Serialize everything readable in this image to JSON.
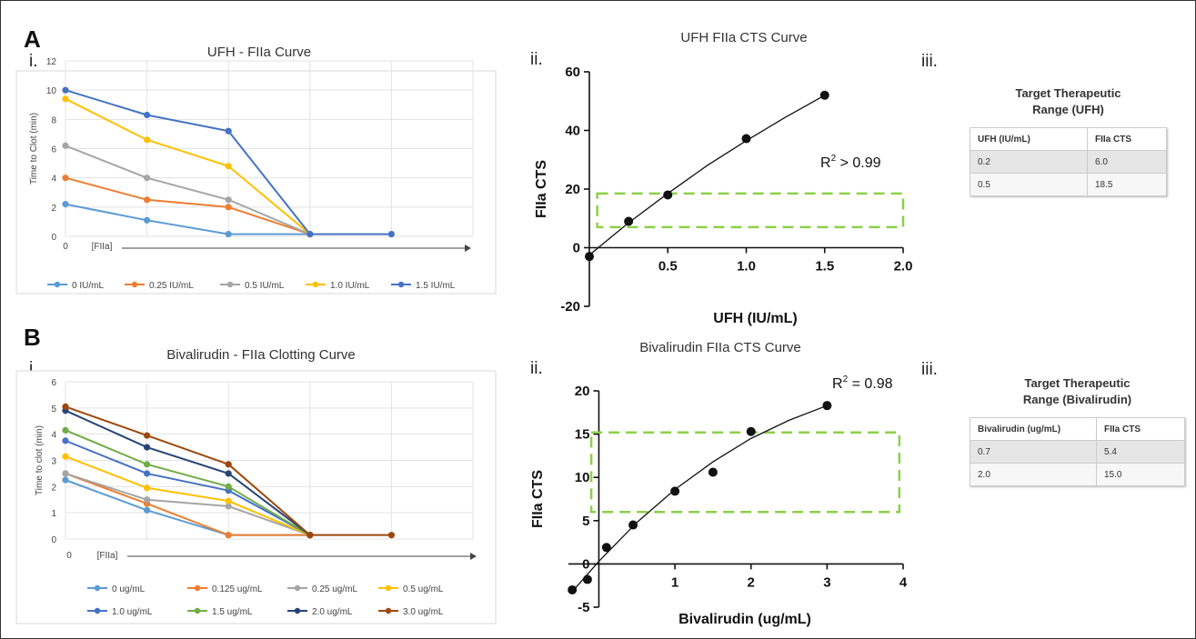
{
  "panels": {
    "A": {
      "letter": "A",
      "i": "i.",
      "ii": "ii.",
      "iii": "iii."
    },
    "B": {
      "letter": "B",
      "i": "i.",
      "ii": "ii.",
      "iii": "iii."
    }
  },
  "tables": {
    "ufh": {
      "title_line1": "Target Therapeutic",
      "title_line2": "Range (UFH)",
      "headers": [
        "UFH (IU/mL)",
        "FIIa CTS"
      ],
      "rows": [
        [
          "0.2",
          "6.0"
        ],
        [
          "0.5",
          "18.5"
        ]
      ]
    },
    "biv": {
      "title_line1": "Target Therapeutic",
      "title_line2": "Range (Bivalirudin)",
      "headers": [
        "Bivalirudin (ug/mL)",
        "FIIa CTS"
      ],
      "rows": [
        [
          "0.7",
          "5.4"
        ],
        [
          "2.0",
          "15.0"
        ]
      ]
    }
  },
  "chart_data": [
    {
      "id": "ufh_clot",
      "type": "line",
      "title": "UFH - FIIa Curve",
      "ylabel": "Time to Clot (min)",
      "xlabel": "[FIIa]",
      "x_origin_label": "0",
      "ylim": [
        0,
        12
      ],
      "yticks": [
        0,
        2,
        4,
        6,
        8,
        10,
        12
      ],
      "n_points": 5,
      "grid": true,
      "legend": "bottom",
      "series": [
        {
          "name": "0 IU/mL",
          "color": "#5b9bd5",
          "values": [
            2.2,
            1.1,
            0.15,
            0.15,
            null
          ]
        },
        {
          "name": "0.25 IU/mL",
          "color": "#ed7d31",
          "values": [
            4.0,
            2.5,
            2.0,
            0.15,
            null
          ]
        },
        {
          "name": "0.5 IU/mL",
          "color": "#a5a5a5",
          "values": [
            6.2,
            4.0,
            2.5,
            0.15,
            null
          ]
        },
        {
          "name": "1.0 IU/mL",
          "color": "#ffc000",
          "values": [
            9.4,
            6.6,
            4.8,
            0.15,
            null
          ]
        },
        {
          "name": "1.5 IU/mL",
          "color": "#4472c4",
          "values": [
            10.0,
            8.3,
            7.2,
            0.15,
            0.15
          ]
        }
      ]
    },
    {
      "id": "ufh_cts",
      "type": "scatter",
      "title": "UFH FIIa CTS Curve",
      "xlabel": "UFH (IU/mL)",
      "ylabel": "FIIa CTS",
      "xlim": [
        0,
        2
      ],
      "ylim": [
        -20,
        60
      ],
      "xticks": [
        "0.5",
        "1.0",
        "1.5",
        "2.0"
      ],
      "yticks": [
        "-20",
        "0",
        "20",
        "40",
        "60"
      ],
      "annotation": {
        "prefix": "R",
        "sup": "2",
        "suffix": " > 0.99"
      },
      "points": [
        [
          0,
          -3
        ],
        [
          0.25,
          9
        ],
        [
          0.5,
          18
        ],
        [
          1.0,
          37.2
        ],
        [
          1.5,
          52
        ]
      ],
      "fit": [
        [
          0,
          -2.5
        ],
        [
          0.25,
          8.5
        ],
        [
          0.5,
          18.5
        ],
        [
          0.75,
          28
        ],
        [
          1.0,
          36.5
        ],
        [
          1.25,
          44.5
        ],
        [
          1.5,
          52
        ]
      ],
      "target_range": {
        "x": [
          0.05,
          2.0
        ],
        "y": [
          7,
          18.5
        ],
        "color": "#8cd04a"
      }
    },
    {
      "id": "biv_clot",
      "type": "line",
      "title": "Bivalirudin - FIIa Clotting Curve",
      "ylabel": "Time to clot (min)",
      "xlabel": "[FIIa]",
      "x_origin_label": "0",
      "ylim": [
        0,
        6
      ],
      "yticks": [
        0,
        1,
        2,
        3,
        4,
        5,
        6
      ],
      "n_points": 5,
      "grid": true,
      "legend": "bottom",
      "series": [
        {
          "name": "0 ug/mL",
          "color": "#5b9bd5",
          "values": [
            2.25,
            1.1,
            0.15,
            0.15,
            null
          ]
        },
        {
          "name": "0.125 ug/mL",
          "color": "#ed7d31",
          "values": [
            2.5,
            1.35,
            0.15,
            0.15,
            null
          ]
        },
        {
          "name": "0.25 ug/mL",
          "color": "#a5a5a5",
          "values": [
            2.5,
            1.5,
            1.25,
            0.15,
            null
          ]
        },
        {
          "name": "0.5 ug/mL",
          "color": "#ffc000",
          "values": [
            3.15,
            1.95,
            1.45,
            0.15,
            null
          ]
        },
        {
          "name": "1.0 ug/mL",
          "color": "#4472c4",
          "values": [
            3.75,
            2.5,
            1.85,
            0.15,
            null
          ]
        },
        {
          "name": "1.5 ug/mL",
          "color": "#70ad47",
          "values": [
            4.15,
            2.85,
            2.0,
            0.15,
            null
          ]
        },
        {
          "name": "2.0 ug/mL",
          "color": "#264478",
          "values": [
            4.9,
            3.5,
            2.5,
            0.15,
            null
          ]
        },
        {
          "name": "3.0 ug/mL",
          "color": "#9e480e",
          "values": [
            5.05,
            3.95,
            2.85,
            0.15,
            0.15
          ]
        }
      ]
    },
    {
      "id": "biv_cts",
      "type": "scatter",
      "title": "Bivalirudin FIIa CTS Curve",
      "xlabel": "Bivalirudin (ug/mL)",
      "ylabel": "FIIa  CTS",
      "xlim": [
        -0.4,
        4
      ],
      "ylim": [
        -5,
        20
      ],
      "xticks": [
        "1",
        "2",
        "3",
        "4"
      ],
      "yticks": [
        "-5",
        "0",
        "5",
        "10",
        "15",
        "20"
      ],
      "annotation": {
        "prefix": "R",
        "sup": "2",
        "suffix": " = 0.98"
      },
      "points": [
        [
          -0.35,
          -3
        ],
        [
          -0.15,
          -1.8
        ],
        [
          0.1,
          1.9
        ],
        [
          0.45,
          4.5
        ],
        [
          1.0,
          8.4
        ],
        [
          1.5,
          10.6
        ],
        [
          2.0,
          15.3
        ],
        [
          3.0,
          18.3
        ]
      ],
      "fit": [
        [
          -0.35,
          -3.2
        ],
        [
          0,
          0.3
        ],
        [
          0.5,
          4.8
        ],
        [
          1.0,
          8.6
        ],
        [
          1.5,
          11.8
        ],
        [
          2.0,
          14.5
        ],
        [
          2.5,
          16.6
        ],
        [
          3.0,
          18.3
        ]
      ],
      "target_range": {
        "x": [
          -0.1,
          3.95
        ],
        "y": [
          6,
          15.2
        ],
        "color": "#8cd04a"
      }
    }
  ]
}
